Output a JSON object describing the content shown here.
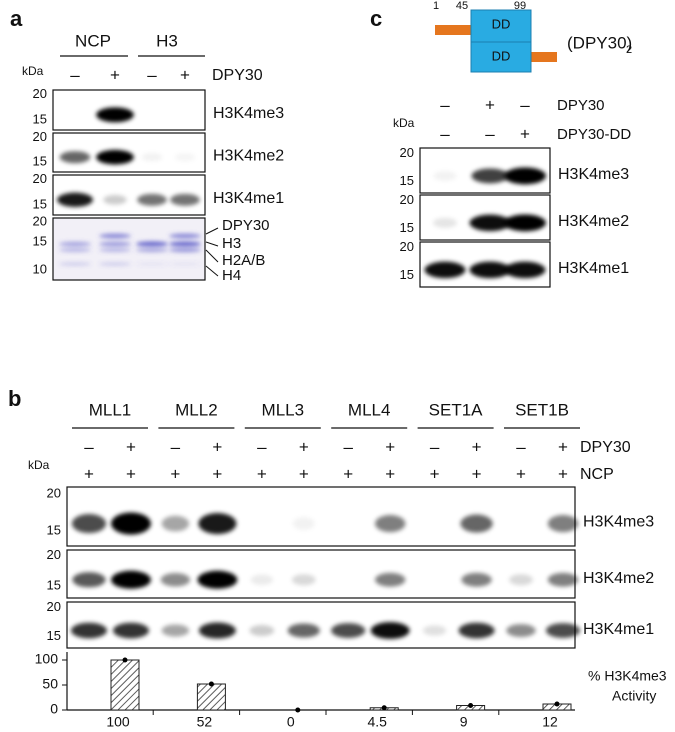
{
  "panel_a": {
    "label": "a",
    "groups": [
      "NCP",
      "H3"
    ],
    "kda": "kDa",
    "treatment": "DPY30",
    "signs": [
      "–",
      "+",
      "–",
      "+"
    ],
    "blots": [
      {
        "name": "H3K4me3",
        "markers": [
          20,
          15
        ]
      },
      {
        "name": "H3K4me2",
        "markers": [
          20,
          15
        ]
      },
      {
        "name": "H3K4me1",
        "markers": [
          20,
          15
        ]
      }
    ],
    "gel": {
      "markers": [
        20,
        15,
        10
      ],
      "bands": [
        "DPY30",
        "H3",
        "H2A/B",
        "H4"
      ]
    }
  },
  "panel_b": {
    "label": "b",
    "groups": [
      "MLL1",
      "MLL2",
      "MLL3",
      "MLL4",
      "SET1A",
      "SET1B"
    ],
    "kda": "kDa",
    "rows": [
      {
        "name": "DPY30",
        "signs": [
          "–",
          "+",
          "–",
          "+",
          "–",
          "+",
          "–",
          "+",
          "–",
          "+",
          "–",
          "+"
        ]
      },
      {
        "name": "NCP",
        "signs": [
          "+",
          "+",
          "+",
          "+",
          "+",
          "+",
          "+",
          "+",
          "+",
          "+",
          "+",
          "+"
        ]
      }
    ],
    "blots": [
      {
        "name": "H3K4me3",
        "markers": [
          20,
          15
        ]
      },
      {
        "name": "H3K4me2",
        "markers": [
          20,
          15
        ]
      },
      {
        "name": "H3K4me1",
        "markers": [
          20,
          15
        ]
      }
    ],
    "chart_data": {
      "type": "bar",
      "values": [
        100,
        52,
        0,
        4.5,
        9,
        12
      ],
      "ylim": [
        0,
        110
      ],
      "yticks": [
        0,
        50,
        100
      ],
      "legend": [
        "% H3K4me3",
        "Activity"
      ]
    }
  },
  "panel_c": {
    "label": "c",
    "domain": {
      "positions": [
        1,
        45,
        99
      ],
      "boxes": [
        "DD",
        "DD"
      ],
      "complex": "(DPY30)",
      "subscript": "2"
    },
    "kda": "kDa",
    "rows": [
      {
        "name": "DPY30",
        "signs": [
          "–",
          "+",
          "–"
        ]
      },
      {
        "name": "DPY30-DD",
        "signs": [
          "–",
          "–",
          "+"
        ]
      }
    ],
    "blots": [
      {
        "name": "H3K4me3",
        "markers": [
          20,
          15
        ]
      },
      {
        "name": "H3K4me2",
        "markers": [
          20,
          15
        ]
      },
      {
        "name": "H3K4me1",
        "markers": [
          20,
          15
        ]
      }
    ]
  }
}
